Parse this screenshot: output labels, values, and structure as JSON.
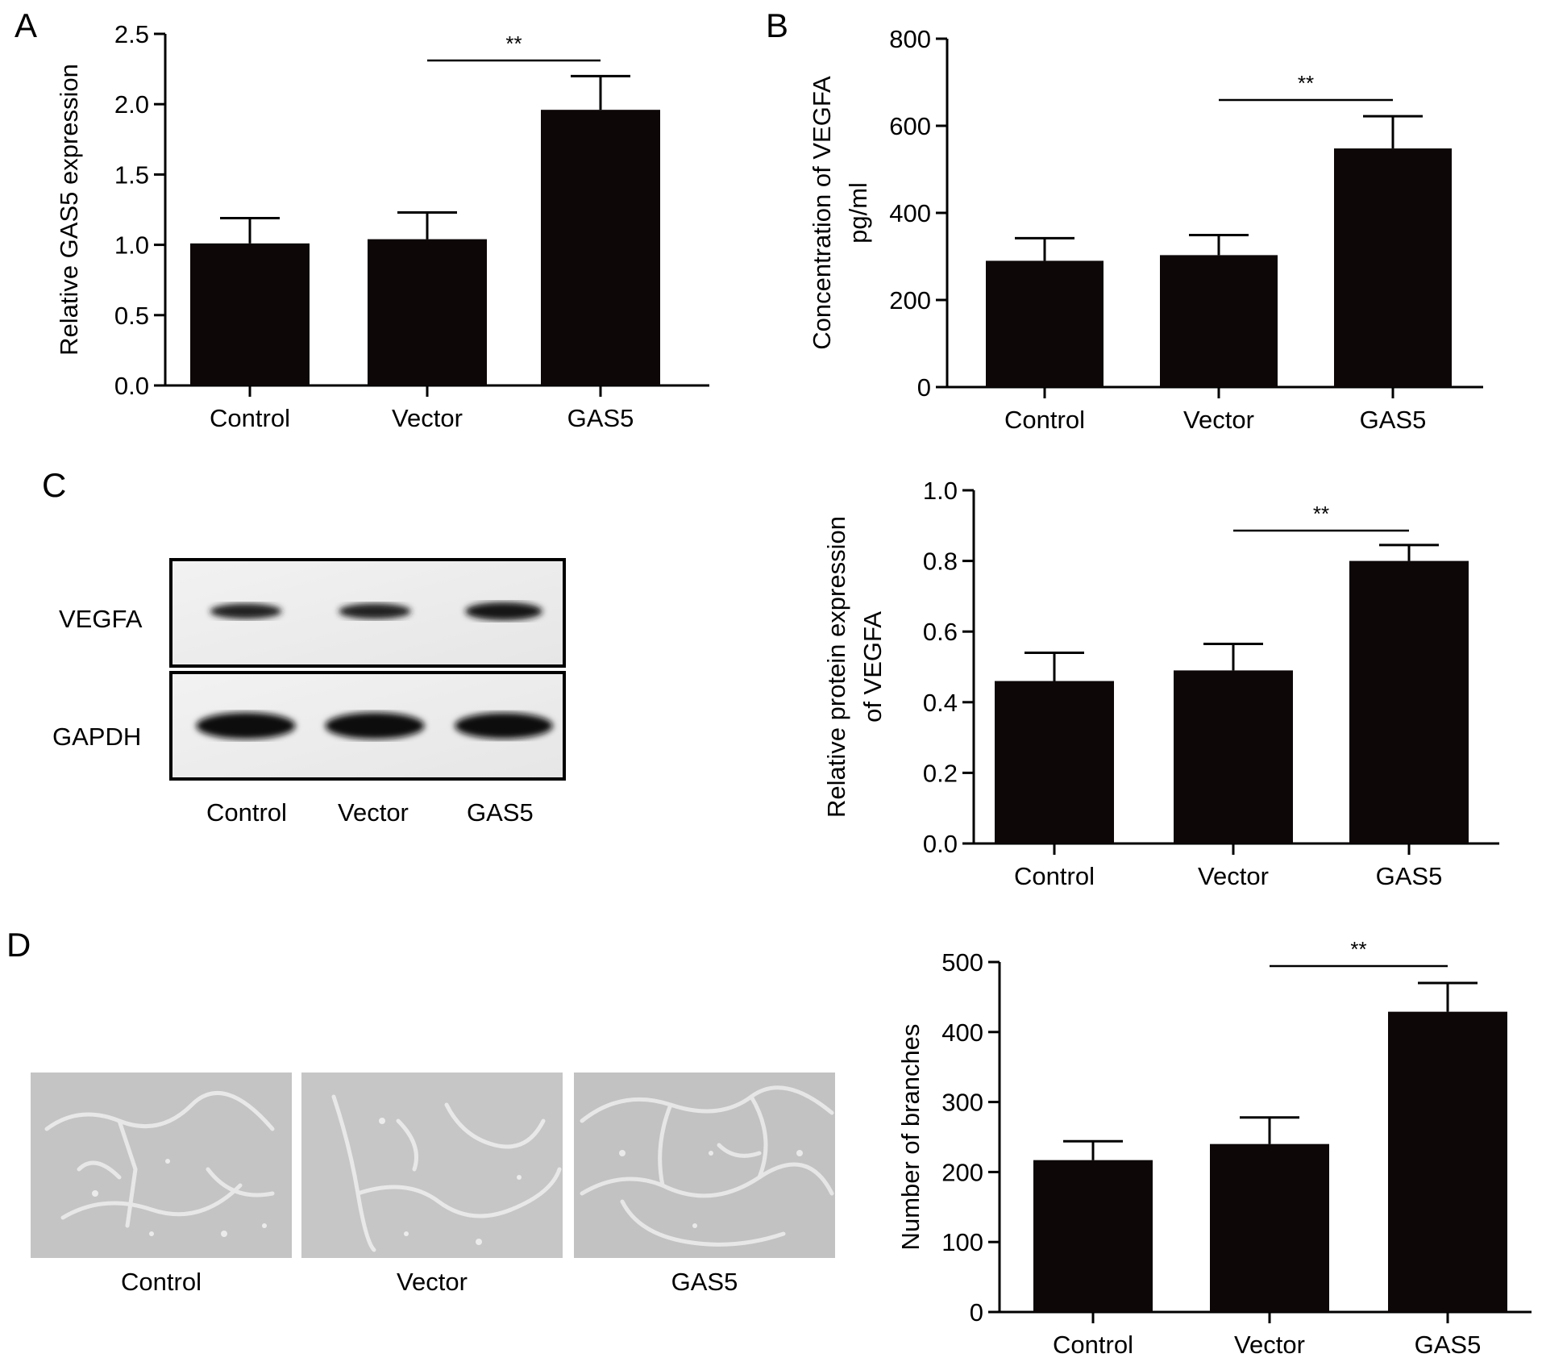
{
  "panels": {
    "a": "A",
    "b": "B",
    "c": "C",
    "d": "D"
  },
  "chart_data": [
    {
      "id": "A",
      "type": "bar",
      "categories": [
        "Control",
        "Vector",
        "GAS5"
      ],
      "values": [
        1.01,
        1.04,
        1.96
      ],
      "errors": [
        0.18,
        0.19,
        0.24
      ],
      "ylabel": "Relative GAS5 expression",
      "ylim": [
        0,
        2.5
      ],
      "yticks": [
        "0.0",
        "0.5",
        "1.0",
        "1.5",
        "2.0",
        "2.5"
      ],
      "significance": {
        "from": "Vector",
        "to": "GAS5",
        "label": "**"
      },
      "bar_color": "#0d0708"
    },
    {
      "id": "B",
      "type": "bar",
      "categories": [
        "Control",
        "Vector",
        "GAS5"
      ],
      "values": [
        290,
        303,
        548
      ],
      "errors": [
        52,
        46,
        74
      ],
      "ylabel": "Concentration of VEGFA",
      "ylabel2": "pg/ml",
      "ylim": [
        0,
        800
      ],
      "yticks": [
        "0",
        "200",
        "400",
        "600",
        "800"
      ],
      "significance": {
        "from": "Vector",
        "to": "GAS5",
        "label": "**"
      },
      "bar_color": "#0d0708"
    },
    {
      "id": "C",
      "type": "bar",
      "categories": [
        "Control",
        "Vector",
        "GAS5"
      ],
      "values": [
        0.46,
        0.49,
        0.8
      ],
      "errors": [
        0.08,
        0.075,
        0.045
      ],
      "ylabel": "Relative protein expression",
      "ylabel2": "of VEGFA",
      "ylim": [
        0,
        1.0
      ],
      "yticks": [
        "0.0",
        "0.2",
        "0.4",
        "0.6",
        "0.8",
        "1.0"
      ],
      "significance": {
        "from": "Vector",
        "to": "GAS5",
        "label": "**"
      },
      "bar_color": "#0d0708"
    },
    {
      "id": "D",
      "type": "bar",
      "categories": [
        "Control",
        "Vector",
        "GAS5"
      ],
      "values": [
        217,
        240,
        429
      ],
      "errors": [
        27,
        38,
        41
      ],
      "ylabel": "Number of branches",
      "ylim": [
        0,
        500
      ],
      "yticks": [
        "0",
        "100",
        "200",
        "300",
        "400",
        "500"
      ],
      "significance": {
        "from": "Vector",
        "to": "GAS5",
        "label": "**"
      },
      "bar_color": "#0d0708"
    }
  ],
  "western_blot": {
    "rows": [
      "VEGFA",
      "GAPDH"
    ],
    "lanes": [
      "Control",
      "Vector",
      "GAS5"
    ],
    "band_intensity": {
      "VEGFA": [
        0.55,
        0.58,
        0.85
      ],
      "GAPDH": [
        1.0,
        1.0,
        0.95
      ]
    }
  },
  "tube_formation": {
    "labels": [
      "Control",
      "Vector",
      "GAS5"
    ]
  }
}
